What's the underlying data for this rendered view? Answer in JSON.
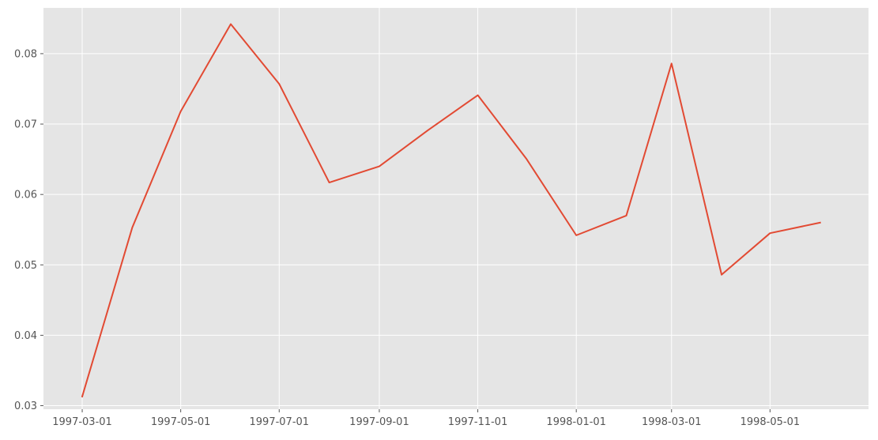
{
  "chart_data": {
    "type": "line",
    "title": "",
    "xlabel": "",
    "ylabel": "",
    "style": "ggplot",
    "background_color": "#e5e5e5",
    "grid": true,
    "grid_color": "#ffffff",
    "line_color": "#e24a33",
    "xlim": [
      "1997-02-05",
      "1998-07-01"
    ],
    "ylim": [
      0.0295,
      0.0865
    ],
    "x_ticks": [
      "1997-03-01",
      "1997-05-01",
      "1997-07-01",
      "1997-09-01",
      "1997-11-01",
      "1998-01-01",
      "1998-03-01",
      "1998-05-01"
    ],
    "y_ticks": [
      0.03,
      0.04,
      0.05,
      0.06,
      0.07,
      0.08
    ],
    "y_tick_labels": [
      "0.03",
      "0.04",
      "0.05",
      "0.06",
      "0.07",
      "0.08"
    ],
    "series": [
      {
        "x": [
          "1997-03-01",
          "1997-04-01",
          "1997-05-01",
          "1997-06-01",
          "1997-07-01",
          "1997-08-01",
          "1997-09-01",
          "1997-10-01",
          "1997-11-01",
          "1997-12-01",
          "1998-01-01",
          "1998-02-01",
          "1998-03-01",
          "1998-04-01",
          "1998-05-01",
          "1998-06-01"
        ],
        "values": [
          0.0313,
          0.0553,
          0.0718,
          0.0842,
          0.0757,
          0.0617,
          0.064,
          0.0691,
          0.0741,
          0.0651,
          0.0542,
          0.057,
          0.0786,
          0.0486,
          0.0545,
          0.056
        ]
      }
    ]
  }
}
